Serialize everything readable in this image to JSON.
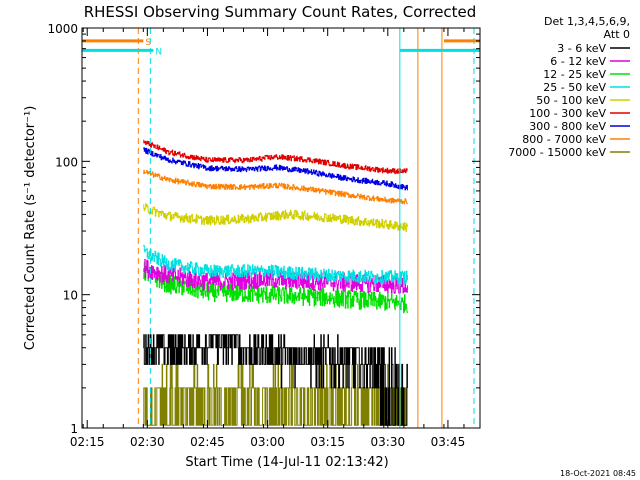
{
  "chart_data": {
    "type": "line",
    "title": "RHESSI Observing Summary Count Rates, Corrected",
    "xlabel": "Start Time (14-Jul-11 02:13:42)",
    "ylabel": "Corrected Count Rate (s⁻¹ detector⁻¹)",
    "yscale": "log",
    "ylim": [
      1,
      1000
    ],
    "xlim": [
      "02:13:42",
      "03:53:00"
    ],
    "x_ticks": [
      "02:15",
      "02:30",
      "02:45",
      "03:00",
      "03:15",
      "03:30",
      "03:45"
    ],
    "y_ticks": [
      "1",
      "10",
      "100",
      "1000"
    ],
    "legend": {
      "placement": "top-right",
      "header": [
        "Det 1,3,4,5,6,9,",
        "Att 0"
      ]
    },
    "footer_date": "18-Oct-2021 08:45",
    "flags": [
      {
        "label": "S",
        "color": "#ff8000",
        "x_start": "02:13:42",
        "x_end": "02:29:00",
        "x_resume": "03:44:00",
        "level": 800
      },
      {
        "label": "N",
        "color": "#00e0e0",
        "x_start": "02:13:42",
        "x_end": "02:31:30",
        "x_resume": "03:33:00",
        "level": 680
      }
    ],
    "markers": [
      {
        "color": "#ff8000",
        "x": "02:27:45",
        "style": "dashed"
      },
      {
        "color": "#00e0e0",
        "x": "02:30:45",
        "style": "dashed"
      },
      {
        "color": "#00e0e0",
        "x": "02:13:42",
        "style": "solid"
      },
      {
        "color": "#00e0e0",
        "x": "03:33:00",
        "style": "solid"
      },
      {
        "color": "#ff8000",
        "x": "03:37:30",
        "style": "solid"
      },
      {
        "color": "#ff8000",
        "x": "03:43:30",
        "style": "solid"
      },
      {
        "color": "#00e0e0",
        "x": "03:51:30",
        "style": "dashed"
      }
    ],
    "series": [
      {
        "name": "3 - 6 keV",
        "color": "#000000",
        "noise": 0.35,
        "x": [
          "02:29",
          "02:40",
          "02:47",
          "02:50",
          "03:00",
          "03:15",
          "03:28",
          "03:35"
        ],
        "values": [
          4.0,
          4.0,
          4.6,
          4.0,
          3.7,
          3.4,
          3.0,
          2.4
        ]
      },
      {
        "name": "6 - 12 keV",
        "color": "#e000e0",
        "noise": 0.07,
        "x": [
          "02:29",
          "02:35",
          "02:45",
          "03:00",
          "03:15",
          "03:30",
          "03:35"
        ],
        "values": [
          16,
          14,
          12.5,
          13,
          12.5,
          12,
          11.5
        ]
      },
      {
        "name": "12 - 25 keV",
        "color": "#00e000",
        "noise": 0.07,
        "x": [
          "02:29",
          "02:35",
          "02:45",
          "03:00",
          "03:15",
          "03:30",
          "03:35"
        ],
        "values": [
          15,
          12,
          10.5,
          10,
          9.5,
          8.8,
          8.5
        ]
      },
      {
        "name": "25 - 50 keV",
        "color": "#00e0e0",
        "noise": 0.05,
        "x": [
          "02:29",
          "02:35",
          "02:45",
          "03:00",
          "03:15",
          "03:30",
          "03:35"
        ],
        "values": [
          21,
          17,
          15,
          15,
          14,
          13.5,
          13.5
        ]
      },
      {
        "name": "50 - 100 keV",
        "color": "#d0d000",
        "noise": 0.035,
        "x": [
          "02:29",
          "02:35",
          "02:45",
          "02:55",
          "03:05",
          "03:15",
          "03:25",
          "03:35"
        ],
        "values": [
          45,
          39,
          36,
          37,
          40,
          38,
          35,
          32
        ]
      },
      {
        "name": "100 - 300 keV",
        "color": "#e00000",
        "noise": 0.02,
        "x": [
          "02:29",
          "02:35",
          "02:45",
          "02:55",
          "03:02",
          "03:10",
          "03:20",
          "03:30",
          "03:35"
        ],
        "values": [
          140,
          118,
          102,
          102,
          108,
          103,
          92,
          85,
          84
        ]
      },
      {
        "name": "300 - 800 keV",
        "color": "#0000e0",
        "noise": 0.02,
        "x": [
          "02:29",
          "02:35",
          "02:45",
          "02:55",
          "03:02",
          "03:10",
          "03:20",
          "03:30",
          "03:35"
        ],
        "values": [
          122,
          103,
          89,
          87,
          90,
          84,
          74,
          68,
          63
        ]
      },
      {
        "name": "800 - 7000 keV",
        "color": "#ff8000",
        "noise": 0.02,
        "x": [
          "02:29",
          "02:35",
          "02:45",
          "02:55",
          "03:02",
          "03:10",
          "03:20",
          "03:30",
          "03:35"
        ],
        "values": [
          84,
          73,
          65,
          64,
          66,
          62,
          56,
          51,
          50
        ]
      },
      {
        "name": "7000 - 15000 keV",
        "color": "#808000",
        "noise": 0.3,
        "x": [
          "02:29",
          "02:45",
          "03:00",
          "03:15",
          "03:35"
        ],
        "values": [
          1.8,
          1.9,
          1.8,
          1.7,
          1.6
        ]
      }
    ]
  }
}
